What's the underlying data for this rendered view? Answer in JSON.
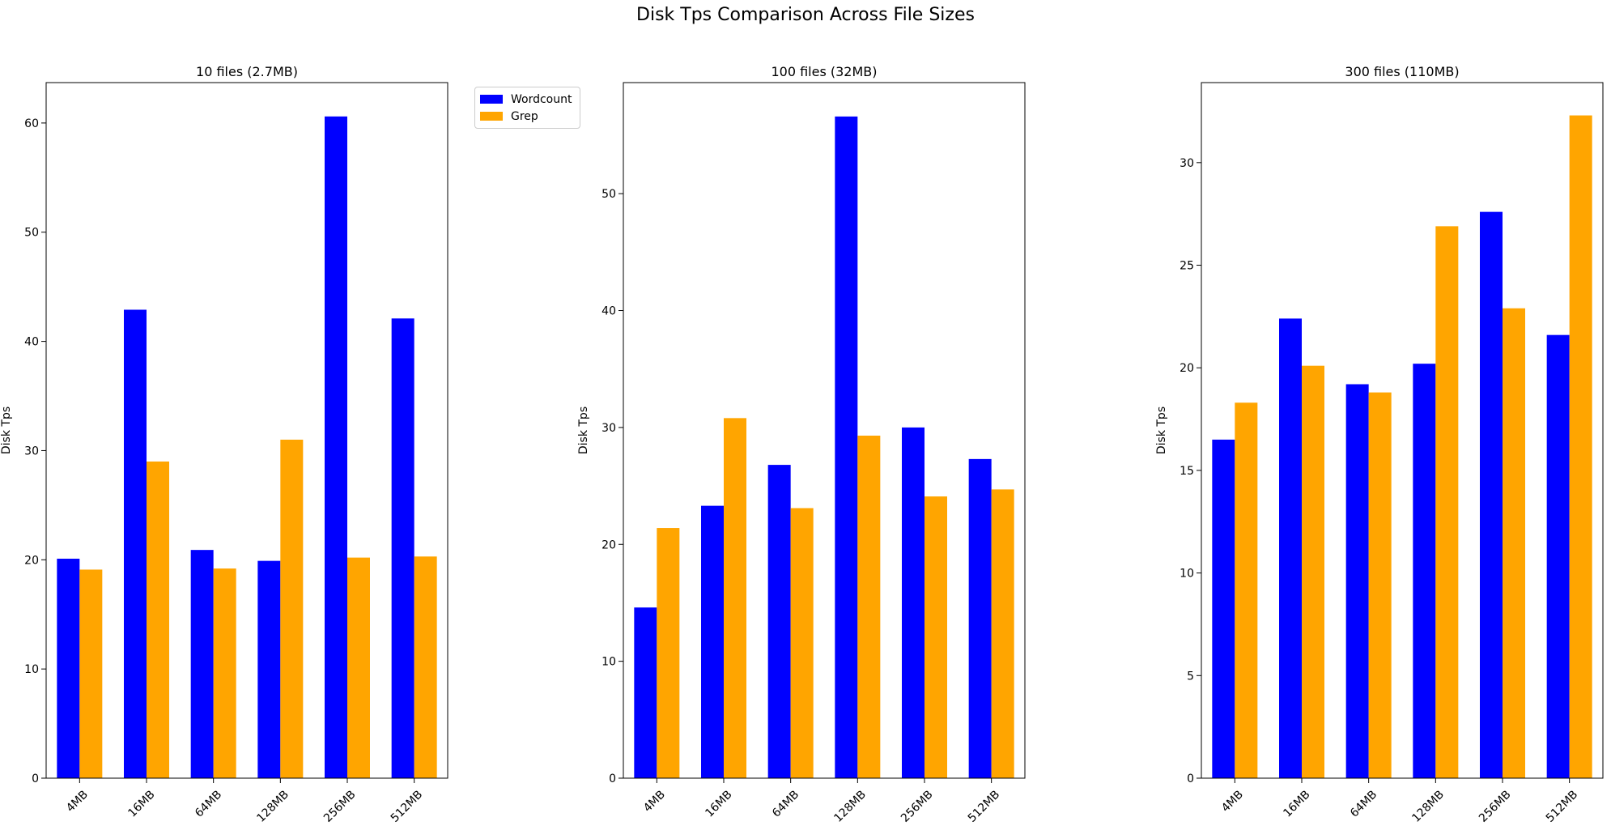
{
  "figure": {
    "title": "Disk Tps Comparison Across File Sizes"
  },
  "legend": {
    "placement": "right of first panel, top",
    "items": [
      {
        "name": "Wordcount",
        "color": "#0000ff"
      },
      {
        "name": "Grep",
        "color": "#ffa500"
      }
    ]
  },
  "chart_data": [
    {
      "type": "bar",
      "title": "10 files (2.7MB)",
      "xlabel": "",
      "ylabel": "Disk Tps",
      "categories": [
        "4MB",
        "16MB",
        "64MB",
        "128MB",
        "256MB",
        "512MB"
      ],
      "ylim": [
        0,
        63.7
      ],
      "yticks": [
        0,
        10,
        20,
        30,
        40,
        50,
        60
      ],
      "grid": false,
      "series": [
        {
          "name": "Wordcount",
          "color": "#0000ff",
          "values": [
            20.1,
            42.9,
            20.9,
            19.9,
            60.6,
            42.1
          ]
        },
        {
          "name": "Grep",
          "color": "#ffa500",
          "values": [
            19.1,
            29.0,
            19.2,
            31.0,
            20.2,
            20.3
          ]
        }
      ]
    },
    {
      "type": "bar",
      "title": "100 files (32MB)",
      "xlabel": "",
      "ylabel": "Disk Tps",
      "categories": [
        "4MB",
        "16MB",
        "64MB",
        "128MB",
        "256MB",
        "512MB"
      ],
      "ylim": [
        0,
        59.5
      ],
      "yticks": [
        0,
        10,
        20,
        30,
        40,
        50
      ],
      "grid": false,
      "series": [
        {
          "name": "Wordcount",
          "color": "#0000ff",
          "values": [
            14.6,
            23.3,
            26.8,
            56.6,
            30.0,
            27.3
          ]
        },
        {
          "name": "Grep",
          "color": "#ffa500",
          "values": [
            21.4,
            30.8,
            23.1,
            29.3,
            24.1,
            24.7
          ]
        }
      ]
    },
    {
      "type": "bar",
      "title": "300 files (110MB)",
      "xlabel": "",
      "ylabel": "Disk Tps",
      "categories": [
        "4MB",
        "16MB",
        "64MB",
        "128MB",
        "256MB",
        "512MB"
      ],
      "ylim": [
        0,
        33.9
      ],
      "yticks": [
        0,
        5,
        10,
        15,
        20,
        25,
        30
      ],
      "grid": false,
      "series": [
        {
          "name": "Wordcount",
          "color": "#0000ff",
          "values": [
            16.5,
            22.4,
            19.2,
            20.2,
            27.6,
            21.6
          ]
        },
        {
          "name": "Grep",
          "color": "#ffa500",
          "values": [
            18.3,
            20.1,
            18.8,
            26.9,
            22.9,
            32.3
          ]
        }
      ]
    }
  ]
}
